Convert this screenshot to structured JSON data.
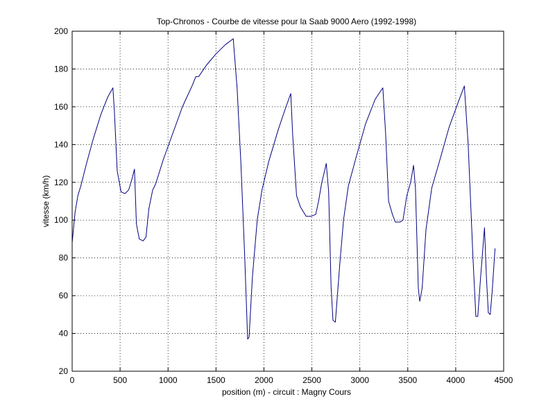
{
  "chart_data": {
    "type": "line",
    "title": "Top-Chronos - Courbe de vitesse pour la Saab 9000 Aero (1992-1998)",
    "xlabel": "position (m) - circuit : Magny Cours",
    "ylabel": "vitesse (km/h)",
    "xlim": [
      0,
      4500
    ],
    "ylim": [
      20,
      200
    ],
    "x_ticks": [
      0,
      500,
      1000,
      1500,
      2000,
      2500,
      3000,
      3500,
      4000,
      4500
    ],
    "y_ticks": [
      20,
      40,
      60,
      80,
      100,
      120,
      140,
      160,
      180,
      200
    ],
    "grid": true,
    "line_color": "#00007f",
    "series": [
      {
        "points": [
          [
            0,
            88
          ],
          [
            30,
            104
          ],
          [
            60,
            113
          ],
          [
            90,
            118
          ],
          [
            150,
            130
          ],
          [
            220,
            143
          ],
          [
            300,
            156
          ],
          [
            370,
            165
          ],
          [
            425,
            170
          ],
          [
            440,
            158
          ],
          [
            470,
            126
          ],
          [
            510,
            115
          ],
          [
            550,
            114
          ],
          [
            590,
            116
          ],
          [
            625,
            122
          ],
          [
            650,
            127
          ],
          [
            670,
            98
          ],
          [
            700,
            90
          ],
          [
            740,
            89
          ],
          [
            770,
            91
          ],
          [
            800,
            106
          ],
          [
            840,
            116
          ],
          [
            870,
            119
          ],
          [
            950,
            132
          ],
          [
            1050,
            146
          ],
          [
            1150,
            160
          ],
          [
            1250,
            171
          ],
          [
            1290,
            176
          ],
          [
            1320,
            176
          ],
          [
            1400,
            182
          ],
          [
            1500,
            188
          ],
          [
            1600,
            193
          ],
          [
            1680,
            196
          ],
          [
            1720,
            170
          ],
          [
            1760,
            130
          ],
          [
            1800,
            80
          ],
          [
            1830,
            37
          ],
          [
            1845,
            38
          ],
          [
            1880,
            70
          ],
          [
            1930,
            100
          ],
          [
            1980,
            116
          ],
          [
            2050,
            131
          ],
          [
            2150,
            148
          ],
          [
            2230,
            160
          ],
          [
            2280,
            167
          ],
          [
            2300,
            145
          ],
          [
            2340,
            113
          ],
          [
            2380,
            107
          ],
          [
            2440,
            102
          ],
          [
            2490,
            102
          ],
          [
            2540,
            103
          ],
          [
            2570,
            110
          ],
          [
            2600,
            119
          ],
          [
            2650,
            130
          ],
          [
            2675,
            115
          ],
          [
            2700,
            65
          ],
          [
            2720,
            47
          ],
          [
            2745,
            46
          ],
          [
            2790,
            76
          ],
          [
            2830,
            100
          ],
          [
            2880,
            118
          ],
          [
            2960,
            133
          ],
          [
            3060,
            151
          ],
          [
            3160,
            164
          ],
          [
            3240,
            170
          ],
          [
            3270,
            145
          ],
          [
            3300,
            110
          ],
          [
            3340,
            103
          ],
          [
            3370,
            99
          ],
          [
            3420,
            99
          ],
          [
            3450,
            100
          ],
          [
            3490,
            113
          ],
          [
            3530,
            120
          ],
          [
            3560,
            129
          ],
          [
            3580,
            117
          ],
          [
            3610,
            64
          ],
          [
            3625,
            57
          ],
          [
            3650,
            64
          ],
          [
            3690,
            95
          ],
          [
            3750,
            117
          ],
          [
            3830,
            131
          ],
          [
            3930,
            149
          ],
          [
            4030,
            163
          ],
          [
            4090,
            171
          ],
          [
            4130,
            140
          ],
          [
            4180,
            80
          ],
          [
            4210,
            49
          ],
          [
            4230,
            49
          ],
          [
            4260,
            70
          ],
          [
            4300,
            96
          ],
          [
            4320,
            70
          ],
          [
            4340,
            51
          ],
          [
            4360,
            50
          ],
          [
            4380,
            62
          ],
          [
            4410,
            85
          ]
        ]
      }
    ]
  }
}
